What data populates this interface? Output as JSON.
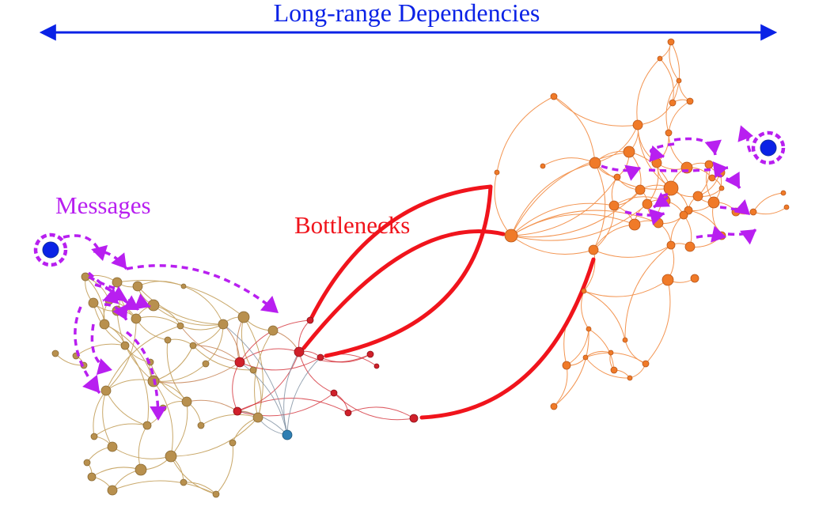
{
  "labels": {
    "top": "Long-range Dependencies",
    "messages": "Messages",
    "bottlenecks": "Bottlenecks"
  },
  "colors": {
    "arrow_blue": "#0a22e6",
    "message_purple": "#b81ff0",
    "bottleneck_red": "#f0141c",
    "cluster_left": "#b8904e",
    "cluster_left_edge": "#c9a86a",
    "cluster_mid": "#d0202a",
    "cluster_right": "#f07a28",
    "cluster_right_edge": "#f39552",
    "node_teal": "#2f7fb3",
    "source_node": "#0a22e6"
  }
}
